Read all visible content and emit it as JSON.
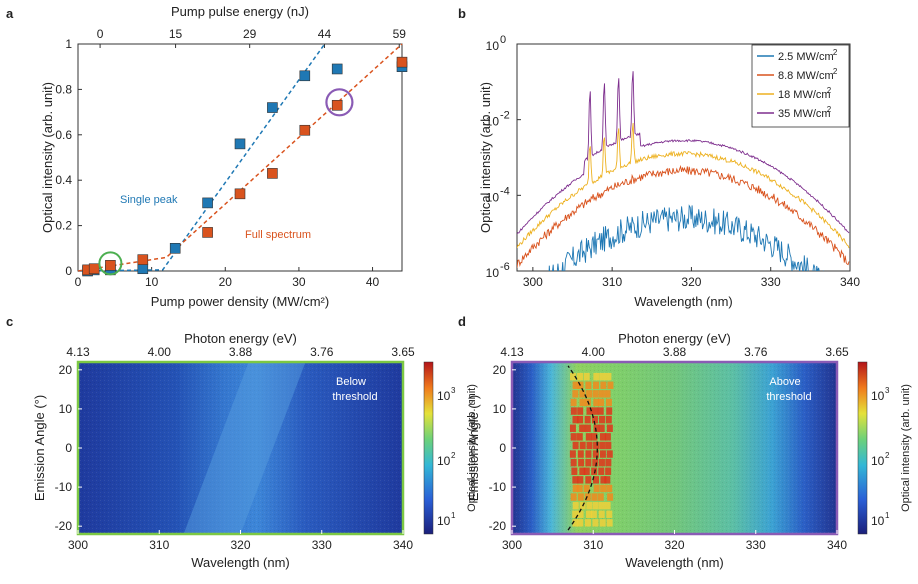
{
  "panels": {
    "a": "a",
    "b": "b",
    "c": "c",
    "d": "d"
  },
  "colors": {
    "blue": "#1f78b4",
    "orange": "#d9531e",
    "yellow": "#edb120",
    "purple": "#7e2f8e",
    "green_frame": "#7cc843",
    "purple_frame": "#8a5bb5",
    "green_circle": "#4caf50"
  },
  "chart_data": [
    {
      "id": "a",
      "type": "scatter",
      "xlabel": "Pump power density (MW/cm²)",
      "ylabel": "Optical intensity (arb. unit)",
      "x2label": "Pump pulse energy (nJ)",
      "xlim": [
        0,
        44
      ],
      "ylim": [
        0,
        1
      ],
      "xticks": [
        "0",
        "10",
        "20",
        "30",
        "40"
      ],
      "yticks": [
        "0",
        "0.2",
        "0.4",
        "0.6",
        "0.8",
        "1"
      ],
      "x2ticks": [
        "0",
        "15",
        "29",
        "44",
        "59"
      ],
      "annotations": {
        "single": "Single peak",
        "full": "Full spectrum"
      },
      "series": [
        {
          "color": "#1f78b4",
          "x": [
            1.3,
            2.2,
            4.4,
            8.8,
            13.2,
            17.6,
            22.0,
            26.4,
            30.8,
            35.2,
            44.0
          ],
          "y": [
            0.0,
            0.005,
            0.005,
            0.01,
            0.1,
            0.3,
            0.56,
            0.72,
            0.86,
            0.89,
            0.9
          ],
          "fit": [
            [
              0,
              0
            ],
            [
              11.5,
              0.005
            ],
            [
              33.5,
              1.0
            ]
          ]
        },
        {
          "color": "#d9531e",
          "x": [
            1.3,
            2.2,
            4.4,
            8.8,
            17.6,
            22.0,
            26.4,
            30.8,
            35.2,
            44.0
          ],
          "y": [
            0.005,
            0.01,
            0.025,
            0.05,
            0.17,
            0.34,
            0.43,
            0.62,
            0.73,
            0.92
          ],
          "fit": [
            [
              0,
              0
            ],
            [
              12,
              0.06
            ],
            [
              44,
              1.0
            ]
          ]
        }
      ],
      "circles": [
        {
          "x": 4.4,
          "y": 0.025
        },
        {
          "x": 35.5,
          "y": 0.73
        }
      ]
    },
    {
      "id": "b",
      "type": "line",
      "xlabel": "Wavelength (nm)",
      "ylabel": "Optical intensity (arb. unit)",
      "xlim": [
        298,
        340
      ],
      "ylim_log10": [
        -6,
        0
      ],
      "xticks": [
        "300",
        "310",
        "320",
        "330",
        "340"
      ],
      "yticks": [
        "10",
        "10",
        "10",
        "10"
      ],
      "yexp": [
        "0",
        "-2",
        "-4",
        "-6"
      ],
      "legend_position": "top-right",
      "series": [
        {
          "name": "2.5 MW/cm",
          "sup": "2",
          "color": "#1f78b4",
          "peak_log": -4.6,
          "noise": 0.35
        },
        {
          "name": "8.8 MW/cm",
          "sup": "2",
          "color": "#d9531e",
          "peak_log": -3.35,
          "noise": 0.12
        },
        {
          "name": "18 MW/cm",
          "sup": "2",
          "color": "#edb120",
          "peak_log": -2.9,
          "noise": 0.06
        },
        {
          "name": "35 MW/cm",
          "sup": "2",
          "color": "#7e2f8e",
          "peak_log": -2.55,
          "noise": 0.03
        }
      ]
    },
    {
      "id": "c",
      "type": "heatmap",
      "xlabel": "Wavelength (nm)",
      "ylabel": "Emission Angle (°)",
      "x2label": "Photon energy (eV)",
      "xlim": [
        300,
        340
      ],
      "ylim": [
        -22,
        22
      ],
      "xticks": [
        "300",
        "310",
        "320",
        "330",
        "340"
      ],
      "yticks": [
        "20",
        "10",
        "0",
        "-10",
        "-20"
      ],
      "x2ticks": [
        "4.13",
        "4.00",
        "3.88",
        "3.76",
        "3.65"
      ],
      "colorbar_label": "Optical intensity (arb. unit)",
      "colorbar_ticks": [
        "10",
        "10",
        "10"
      ],
      "colorbar_exp": [
        "3",
        "2",
        "1"
      ],
      "annotation": [
        "Below",
        "threshold"
      ]
    },
    {
      "id": "d",
      "type": "heatmap",
      "xlabel": "Wavelength (nm)",
      "ylabel": "Emission Angle (°)",
      "x2label": "Photon energy (eV)",
      "xlim": [
        300,
        340
      ],
      "ylim": [
        -22,
        22
      ],
      "xticks": [
        "300",
        "310",
        "320",
        "330",
        "340"
      ],
      "yticks": [
        "20",
        "10",
        "0",
        "-10",
        "-20"
      ],
      "x2ticks": [
        "4.13",
        "4.00",
        "3.88",
        "3.76",
        "3.65"
      ],
      "colorbar_label": "Optical intensity (arb. unit)",
      "colorbar_ticks": [
        "10",
        "10",
        "10"
      ],
      "colorbar_exp": [
        "3",
        "2",
        "1"
      ],
      "annotation": [
        "Above",
        "threshold"
      ]
    }
  ]
}
